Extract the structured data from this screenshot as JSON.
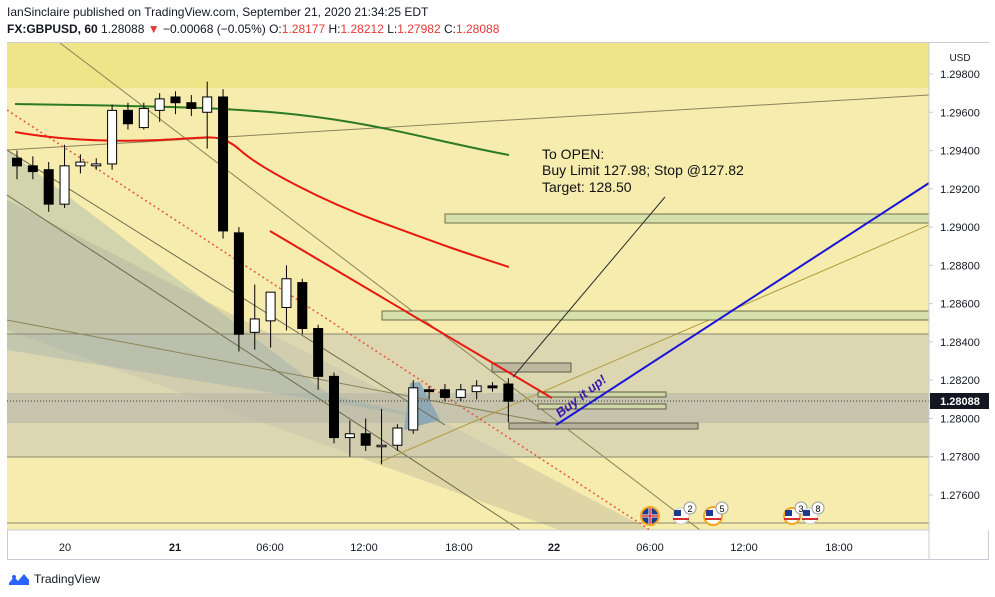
{
  "header": {
    "publisher_line": "IanSinclaire published on TradingView.com, September 21, 2020 21:34:25 EDT",
    "symbol": "FX:GBPUSD, 60",
    "last": "1.28088",
    "change": "−0.00068 (−0.05%)",
    "open_label": "O:",
    "open": "1.28177",
    "high_label": "H:",
    "high": "1.28212",
    "low_label": "L:",
    "low": "1.27982",
    "close_label": "C:",
    "close": "1.28088"
  },
  "price_axis": {
    "currency": "USD",
    "ticks": [
      "1.29800",
      "1.29600",
      "1.29400",
      "1.29200",
      "1.29000",
      "1.28800",
      "1.28600",
      "1.28400",
      "1.28200",
      "1.28000",
      "1.27800",
      "1.27600"
    ],
    "current_price": "1.28088"
  },
  "time_axis": {
    "ticks": [
      "20",
      "21",
      "06:00",
      "12:00",
      "18:00",
      "22",
      "06:00",
      "12:00",
      "18:00"
    ]
  },
  "annotation": {
    "line1": "To OPEN:",
    "line2": "Buy Limit 127.98; Stop @127.82",
    "line3": "Target:  128.50",
    "callout": "Buy it up!"
  },
  "events": [
    {
      "flag": "uk-flag-icon",
      "count": ""
    },
    {
      "flag": "us-flag-icon",
      "count": "2"
    },
    {
      "flag": "us-flag-icon",
      "count": "5"
    },
    {
      "flag": "us-flag-icon",
      "count": "3"
    },
    {
      "flag": "us-flag-icon",
      "count": "8"
    }
  ],
  "footer": {
    "brand": "TradingView"
  },
  "colors": {
    "background": "#f5eaa0",
    "bull_candle": "#ffffff",
    "bear_candle": "#000000",
    "sma_short": "#e8190f",
    "sma_long": "#2c7a24",
    "trend_line": "#1a14d9",
    "zone_fill": "#d8e2b0",
    "accent_red": "#e53935"
  },
  "chart_data": {
    "type": "candlestick",
    "symbol": "FX:GBPUSD",
    "interval": "60",
    "ylim": [
      1.2745,
      1.299
    ],
    "candles": [
      {
        "o": 1.2936,
        "h": 1.294,
        "l": 1.2925,
        "c": 1.2932
      },
      {
        "o": 1.2932,
        "h": 1.2937,
        "l": 1.2925,
        "c": 1.2929
      },
      {
        "o": 1.293,
        "h": 1.2934,
        "l": 1.2908,
        "c": 1.2912
      },
      {
        "o": 1.2912,
        "h": 1.2943,
        "l": 1.291,
        "c": 1.2932
      },
      {
        "o": 1.2932,
        "h": 1.2938,
        "l": 1.2928,
        "c": 1.2934
      },
      {
        "o": 1.2932,
        "h": 1.2936,
        "l": 1.293,
        "c": 1.2933
      },
      {
        "o": 1.2933,
        "h": 1.2964,
        "l": 1.293,
        "c": 1.2961
      },
      {
        "o": 1.2961,
        "h": 1.2965,
        "l": 1.2951,
        "c": 1.2954
      },
      {
        "o": 1.2952,
        "h": 1.2965,
        "l": 1.2951,
        "c": 1.2962
      },
      {
        "o": 1.2961,
        "h": 1.297,
        "l": 1.2955,
        "c": 1.2967
      },
      {
        "o": 1.2968,
        "h": 1.2971,
        "l": 1.2959,
        "c": 1.2965
      },
      {
        "o": 1.2965,
        "h": 1.2969,
        "l": 1.2958,
        "c": 1.2962
      },
      {
        "o": 1.296,
        "h": 1.2976,
        "l": 1.2941,
        "c": 1.2968
      },
      {
        "o": 1.2968,
        "h": 1.2972,
        "l": 1.2894,
        "c": 1.2898
      },
      {
        "o": 1.2897,
        "h": 1.29,
        "l": 1.2835,
        "c": 1.2844
      },
      {
        "o": 1.2845,
        "h": 1.287,
        "l": 1.2836,
        "c": 1.2852
      },
      {
        "o": 1.2851,
        "h": 1.2866,
        "l": 1.2837,
        "c": 1.2866
      },
      {
        "o": 1.2858,
        "h": 1.288,
        "l": 1.2846,
        "c": 1.2873
      },
      {
        "o": 1.2871,
        "h": 1.2873,
        "l": 1.2844,
        "c": 1.2847
      },
      {
        "o": 1.2847,
        "h": 1.2849,
        "l": 1.2815,
        "c": 1.2822
      },
      {
        "o": 1.2822,
        "h": 1.2824,
        "l": 1.2787,
        "c": 1.279
      },
      {
        "o": 1.279,
        "h": 1.2799,
        "l": 1.278,
        "c": 1.2792
      },
      {
        "o": 1.2792,
        "h": 1.28,
        "l": 1.2783,
        "c": 1.2786
      },
      {
        "o": 1.2786,
        "h": 1.2805,
        "l": 1.2776,
        "c": 1.2786
      },
      {
        "o": 1.2786,
        "h": 1.2797,
        "l": 1.2783,
        "c": 1.2795
      },
      {
        "o": 1.2794,
        "h": 1.282,
        "l": 1.2792,
        "c": 1.2816
      },
      {
        "o": 1.2815,
        "h": 1.2817,
        "l": 1.281,
        "c": 1.2814
      },
      {
        "o": 1.2815,
        "h": 1.2818,
        "l": 1.2809,
        "c": 1.2811
      },
      {
        "o": 1.2811,
        "h": 1.2818,
        "l": 1.2809,
        "c": 1.2815
      },
      {
        "o": 1.2814,
        "h": 1.282,
        "l": 1.281,
        "c": 1.2817
      },
      {
        "o": 1.2817,
        "h": 1.2819,
        "l": 1.2814,
        "c": 1.2816
      },
      {
        "o": 1.2818,
        "h": 1.2821,
        "l": 1.2798,
        "c": 1.2809
      }
    ]
  }
}
